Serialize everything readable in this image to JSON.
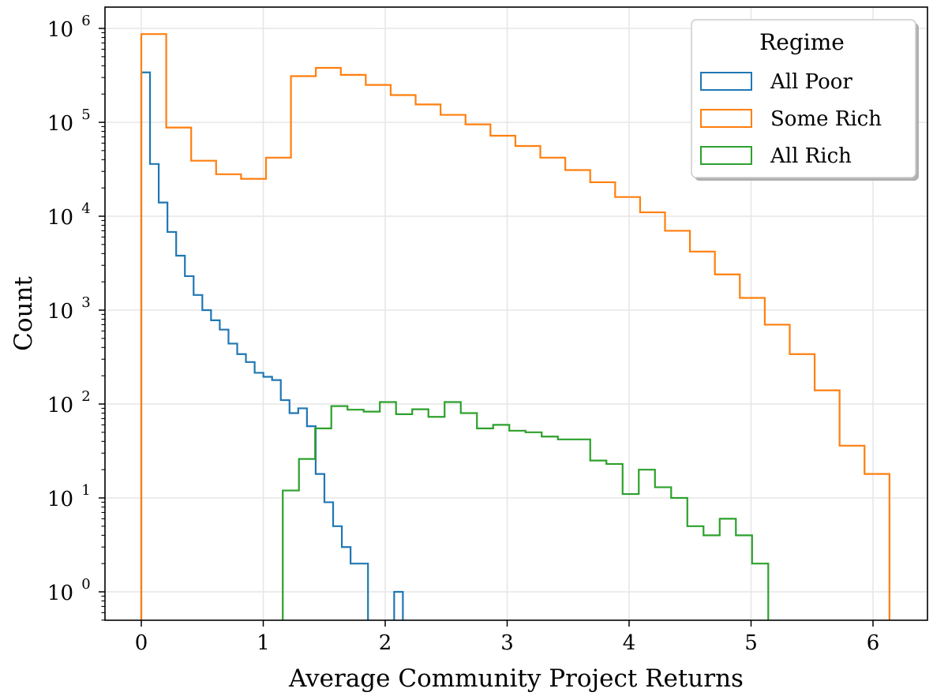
{
  "chart_data": {
    "type": "histogram-step",
    "title": "",
    "xlabel": "Average Community Project Returns",
    "ylabel": "Count",
    "xscale": "linear",
    "yscale": "log",
    "xlim": [
      -0.3,
      6.45
    ],
    "ylim": [
      0.5,
      1700000
    ],
    "xticks": [
      0,
      1,
      2,
      3,
      4,
      5,
      6
    ],
    "xtick_labels": [
      "0",
      "1",
      "2",
      "3",
      "4",
      "5",
      "6"
    ],
    "yticks": [
      1,
      10,
      100,
      1000,
      10000,
      100000,
      1000000
    ],
    "ytick_labels": [
      {
        "base": "10",
        "exp": "0"
      },
      {
        "base": "10",
        "exp": "1"
      },
      {
        "base": "10",
        "exp": "2"
      },
      {
        "base": "10",
        "exp": "3"
      },
      {
        "base": "10",
        "exp": "4"
      },
      {
        "base": "10",
        "exp": "5"
      },
      {
        "base": "10",
        "exp": "6"
      }
    ],
    "grid": true,
    "legend": {
      "title": "Regime",
      "placement": "top-right",
      "entries": [
        "All Poor",
        "Some Rich",
        "All Rich"
      ]
    },
    "series": [
      {
        "name": "All Poor",
        "color": "#1f77b4",
        "bin_start": 0.0,
        "bin_width": 0.0715,
        "counts": [
          340000,
          36000,
          14000,
          6800,
          3800,
          2300,
          1450,
          1000,
          780,
          620,
          440,
          340,
          280,
          215,
          195,
          180,
          110,
          80,
          90,
          58,
          18,
          9,
          5,
          3,
          2,
          2,
          0,
          0,
          0,
          1
        ]
      },
      {
        "name": "Some Rich",
        "color": "#ff7f0e",
        "bin_start": 0.0,
        "bin_width": 0.2045,
        "counts": [
          870000,
          88000,
          39000,
          28000,
          25000,
          42000,
          310000,
          380000,
          320000,
          250000,
          195000,
          155000,
          120000,
          95000,
          72000,
          56000,
          42000,
          31000,
          23000,
          16000,
          11000,
          7000,
          4200,
          2400,
          1350,
          700,
          340,
          140,
          36,
          18
        ]
      },
      {
        "name": "All Rich",
        "color": "#2ca02c",
        "bin_start": 1.16,
        "bin_width": 0.1327,
        "counts": [
          12,
          26,
          55,
          95,
          87,
          83,
          105,
          78,
          88,
          73,
          105,
          80,
          55,
          60,
          52,
          50,
          45,
          42,
          42,
          25,
          23,
          11,
          20,
          13,
          10,
          5,
          4,
          6,
          4,
          2
        ]
      }
    ]
  }
}
